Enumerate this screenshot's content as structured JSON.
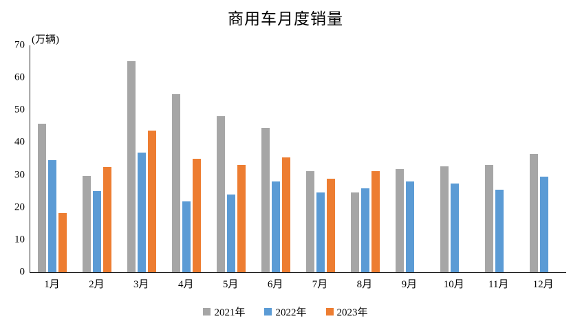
{
  "chart_data": {
    "type": "bar",
    "title": "商用车月度销量",
    "unit_label": "(万辆)",
    "categories": [
      "1月",
      "2月",
      "3月",
      "4月",
      "5月",
      "6月",
      "7月",
      "8月",
      "9月",
      "10月",
      "11月",
      "12月"
    ],
    "series": [
      {
        "name": "2021年",
        "color": "#A6A6A6",
        "values": [
          45.8,
          29.7,
          65.2,
          55.0,
          48.1,
          44.6,
          31.2,
          24.7,
          31.8,
          32.7,
          33.2,
          36.5
        ]
      },
      {
        "name": "2022年",
        "color": "#5B9BD5",
        "values": [
          34.5,
          25.1,
          37.0,
          21.8,
          24.0,
          28.1,
          24.6,
          25.9,
          28.1,
          27.4,
          25.5,
          29.4
        ]
      },
      {
        "name": "2023年",
        "color": "#ED7D31",
        "values": [
          18.3,
          32.4,
          43.6,
          34.9,
          33.0,
          35.5,
          28.8,
          31.1,
          null,
          null,
          null,
          null
        ]
      }
    ],
    "ylim": [
      0,
      70
    ],
    "yticks": [
      0,
      10,
      20,
      30,
      40,
      50,
      60,
      70
    ],
    "grid": false,
    "legend_position": "bottom",
    "axis_color": "#1a1a1a"
  }
}
